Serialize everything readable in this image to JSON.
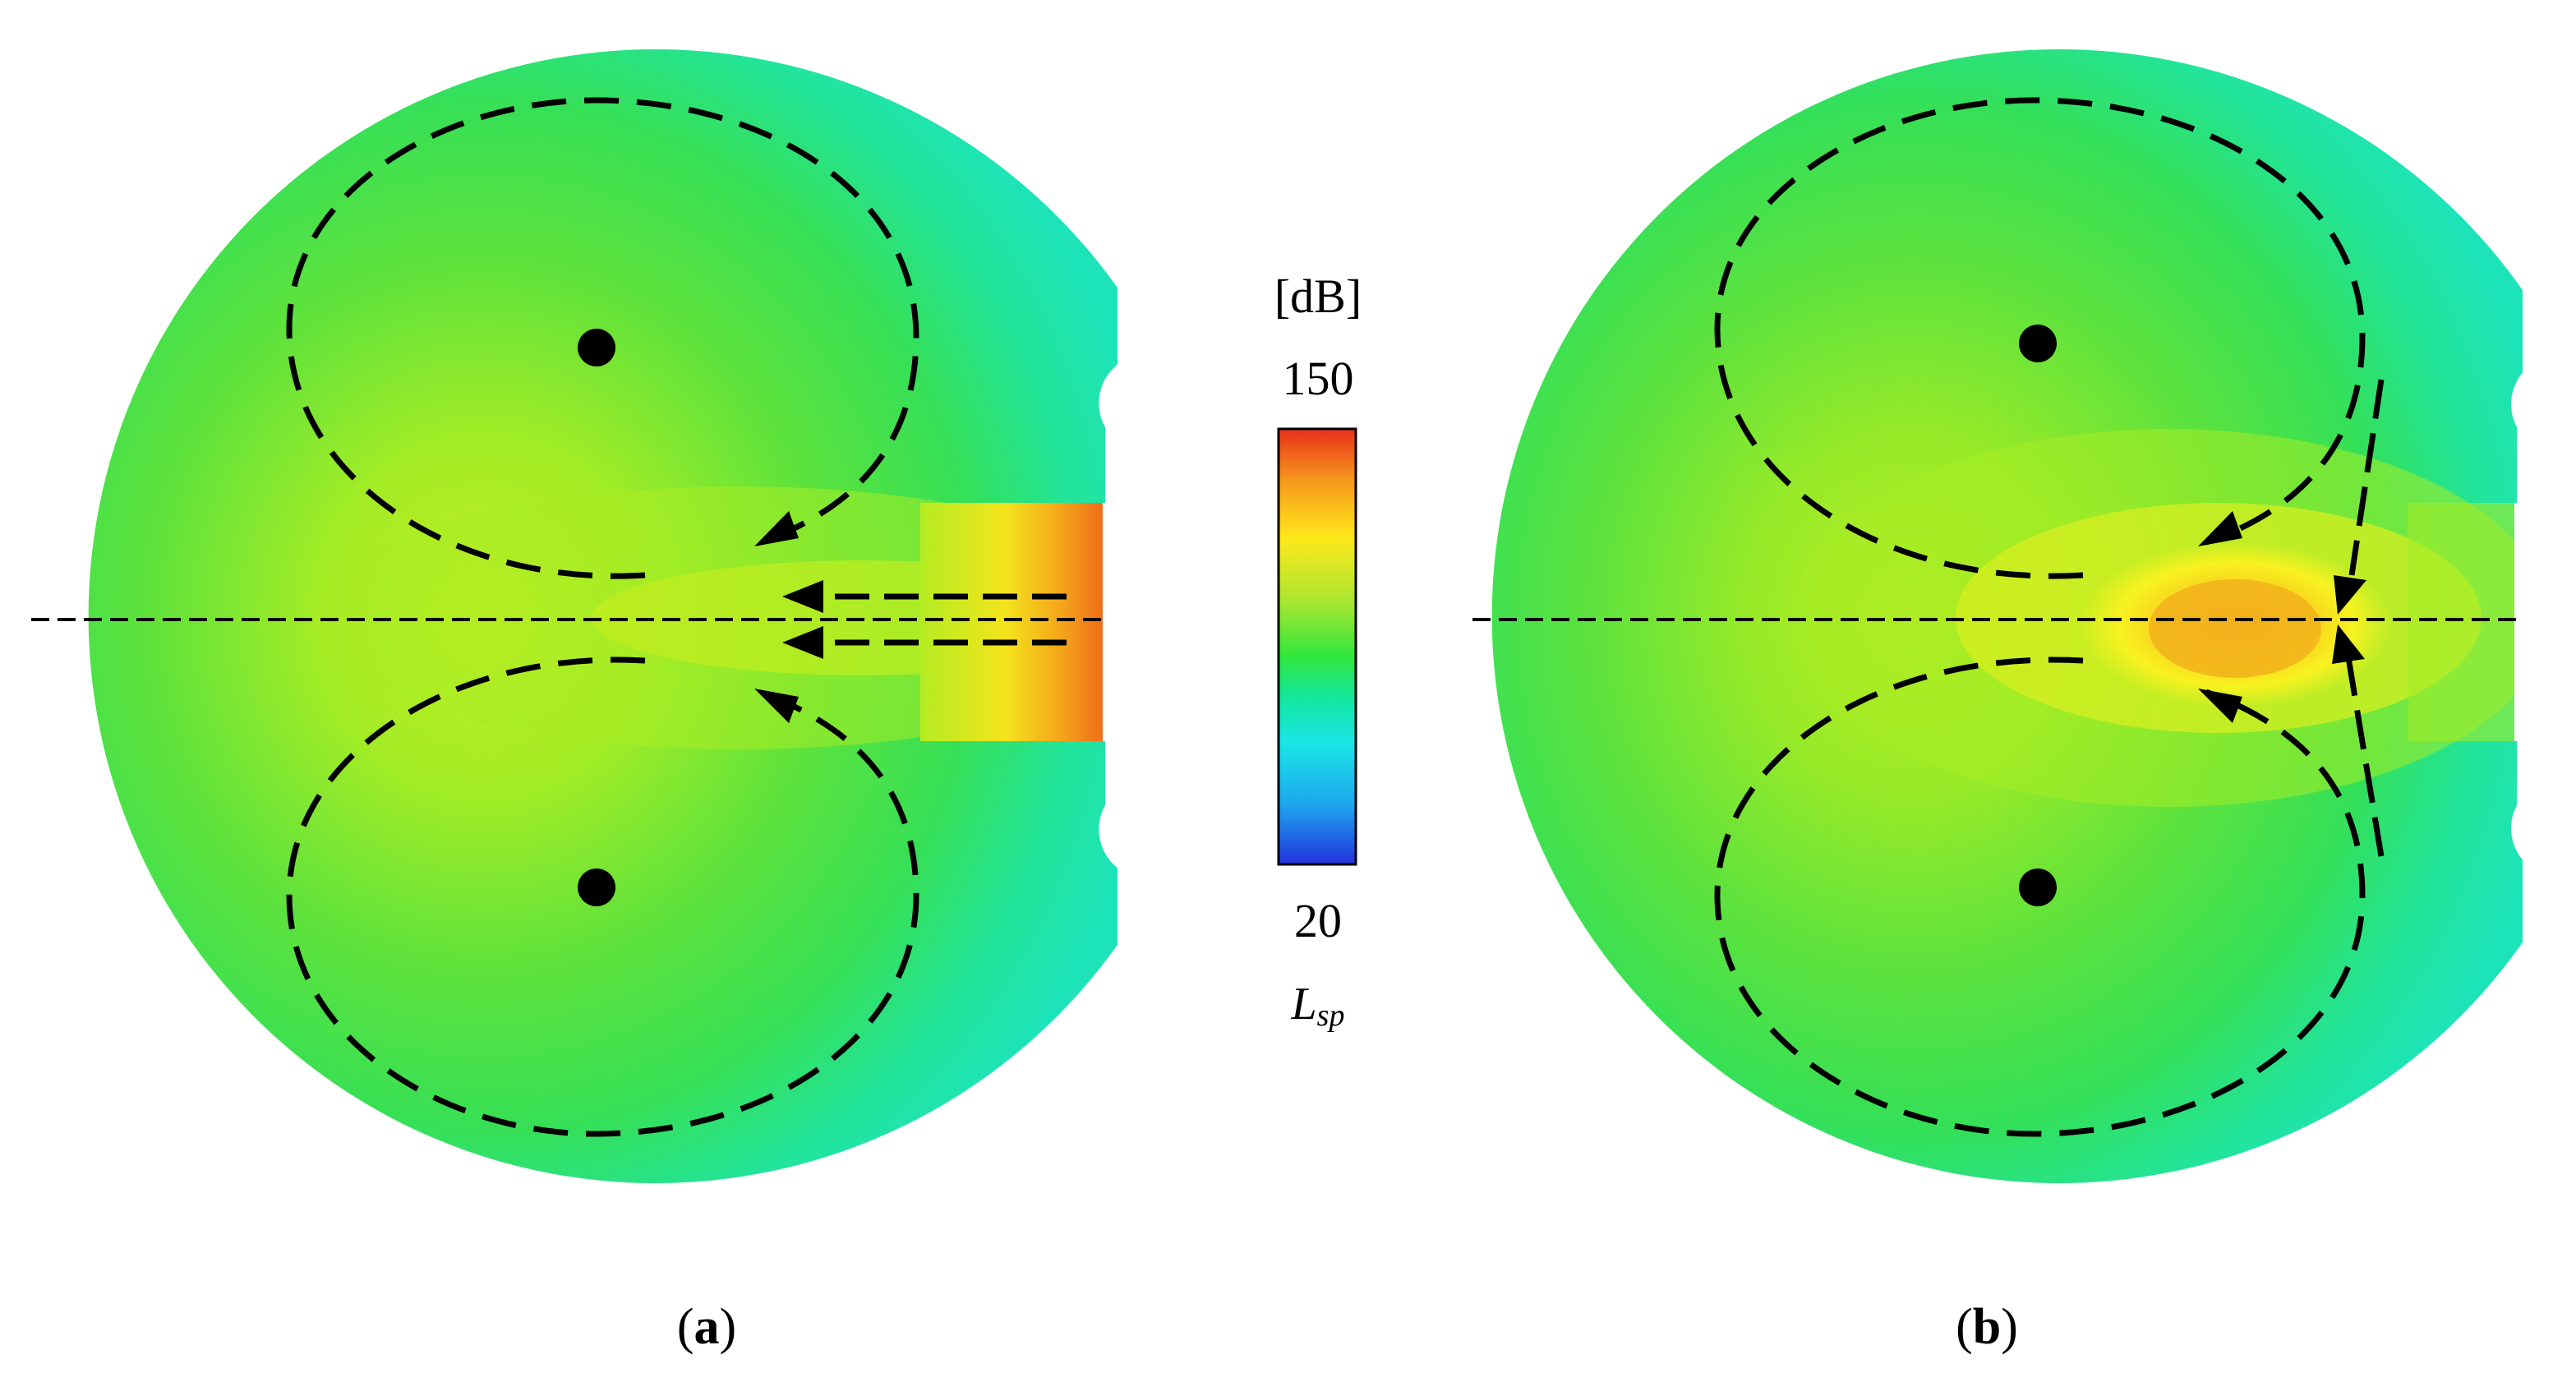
{
  "panels": [
    {
      "id": "a",
      "caption_letter": "a"
    },
    {
      "id": "b",
      "caption_letter": "b"
    }
  ],
  "caption_open": "(",
  "caption_close": ")",
  "colorbar": {
    "unit": "[dB]",
    "max_label": "150",
    "min_label": "20",
    "variable_main": "L",
    "variable_sub": "sp",
    "max_value": 150,
    "min_value": 20,
    "colors": [
      "#e8301c",
      "#f7991c",
      "#ffe81a",
      "#a6e632",
      "#33e63c",
      "#12e6a0",
      "#1ae6e6",
      "#1ea8ee",
      "#2233dd"
    ]
  },
  "colors": {
    "outer_field": "#20e6a0",
    "mid_field": "#40e040",
    "core_field": "#b2ee24",
    "hot_yellow": "#f8f020",
    "hot_orange": "#f4b81c",
    "duct_red": "#ee6a18",
    "lines": "#000000"
  }
}
